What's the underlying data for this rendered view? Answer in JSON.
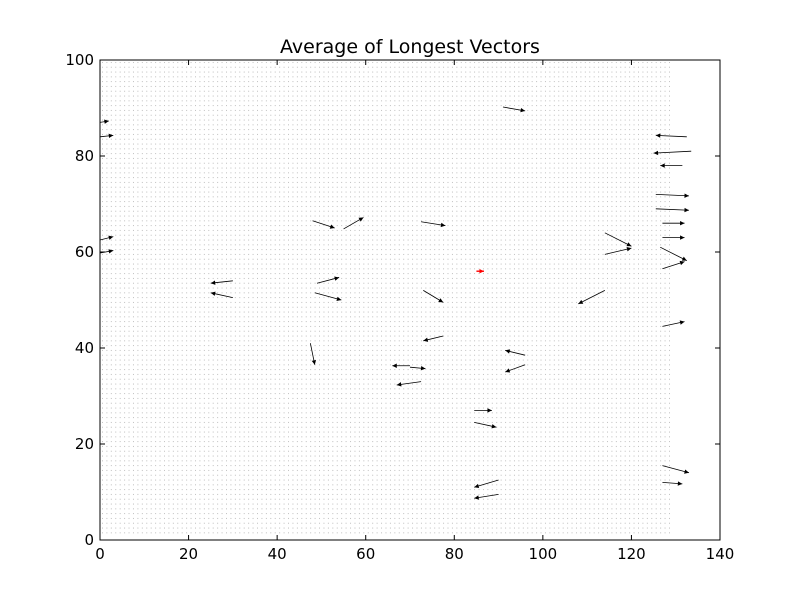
{
  "chart_data": {
    "type": "quiver",
    "title": "Average of Longest Vectors",
    "xlabel": "",
    "ylabel": "",
    "xlim": [
      0,
      140
    ],
    "ylim": [
      0,
      100
    ],
    "xticks": [
      "0",
      "20",
      "40",
      "60",
      "80",
      "100",
      "120",
      "140"
    ],
    "yticks": [
      "0",
      "20",
      "40",
      "60",
      "80",
      "100"
    ],
    "grid": false,
    "background_dot_grid": {
      "x_range": [
        1,
        129
      ],
      "y_range": [
        1,
        99
      ],
      "step": 1
    },
    "vector_color": "#000000",
    "highlight_color": "#ff0000",
    "vectors": [
      {
        "x": 0,
        "y": 87,
        "u": 2,
        "v": 0.3
      },
      {
        "x": 0,
        "y": 84,
        "u": 3,
        "v": 0.3
      },
      {
        "x": 0,
        "y": 62.5,
        "u": 3,
        "v": 0.7
      },
      {
        "x": 0,
        "y": 59.8,
        "u": 3,
        "v": 0.5
      },
      {
        "x": 91,
        "y": 90.2,
        "u": 5,
        "v": -0.8
      },
      {
        "x": 132.5,
        "y": 84,
        "u": -7,
        "v": 0.3
      },
      {
        "x": 133.5,
        "y": 81,
        "u": -8.5,
        "v": -0.4
      },
      {
        "x": 131.5,
        "y": 78,
        "u": -5,
        "v": 0
      },
      {
        "x": 125.5,
        "y": 72,
        "u": 7.5,
        "v": -0.3
      },
      {
        "x": 125.5,
        "y": 69,
        "u": 7.5,
        "v": -0.3
      },
      {
        "x": 127,
        "y": 66,
        "u": 5,
        "v": 0
      },
      {
        "x": 127,
        "y": 63,
        "u": 5,
        "v": 0
      },
      {
        "x": 126.5,
        "y": 61,
        "u": 6,
        "v": -2.8
      },
      {
        "x": 127,
        "y": 56.5,
        "u": 5,
        "v": 1.5
      },
      {
        "x": 127,
        "y": 44.5,
        "u": 5,
        "v": 1
      },
      {
        "x": 127,
        "y": 15.5,
        "u": 6,
        "v": -1.5
      },
      {
        "x": 127,
        "y": 12,
        "u": 4.5,
        "v": -0.3
      },
      {
        "x": 114,
        "y": 64,
        "u": 6,
        "v": -2.8
      },
      {
        "x": 114,
        "y": 59.5,
        "u": 6,
        "v": 1.3
      },
      {
        "x": 114,
        "y": 52,
        "u": -6,
        "v": -2.8
      },
      {
        "x": 48,
        "y": 66.5,
        "u": 5,
        "v": -1.5
      },
      {
        "x": 55,
        "y": 64.8,
        "u": 4.5,
        "v": 2.4
      },
      {
        "x": 72.5,
        "y": 66.3,
        "u": 5.5,
        "v": -0.8
      },
      {
        "x": 30,
        "y": 54,
        "u": -5,
        "v": -0.5
      },
      {
        "x": 30,
        "y": 50.5,
        "u": -5,
        "v": 1
      },
      {
        "x": 49,
        "y": 53.5,
        "u": 5,
        "v": 1.2
      },
      {
        "x": 48.5,
        "y": 51.5,
        "u": 6,
        "v": -1.5
      },
      {
        "x": 73,
        "y": 52,
        "u": 4.5,
        "v": -2.5
      },
      {
        "x": 77.5,
        "y": 42.5,
        "u": -4.5,
        "v": -1
      },
      {
        "x": 47.5,
        "y": 41,
        "u": 1,
        "v": -4.5
      },
      {
        "x": 96,
        "y": 38.5,
        "u": -4.5,
        "v": 1
      },
      {
        "x": 96,
        "y": 36.5,
        "u": -4.5,
        "v": -1.5
      },
      {
        "x": 70,
        "y": 36.3,
        "u": -4,
        "v": 0
      },
      {
        "x": 70,
        "y": 36,
        "u": 3.5,
        "v": -0.3
      },
      {
        "x": 72.5,
        "y": 33,
        "u": -5.5,
        "v": -0.7
      },
      {
        "x": 84.5,
        "y": 27,
        "u": 4,
        "v": 0
      },
      {
        "x": 84.5,
        "y": 24.5,
        "u": 5,
        "v": -1
      },
      {
        "x": 90,
        "y": 12.5,
        "u": -5.5,
        "v": -1.5
      },
      {
        "x": 90,
        "y": 9.5,
        "u": -5.5,
        "v": -0.8
      }
    ],
    "highlight_vector": {
      "x": 85,
      "y": 56,
      "u": 1.7,
      "v": 0
    }
  }
}
